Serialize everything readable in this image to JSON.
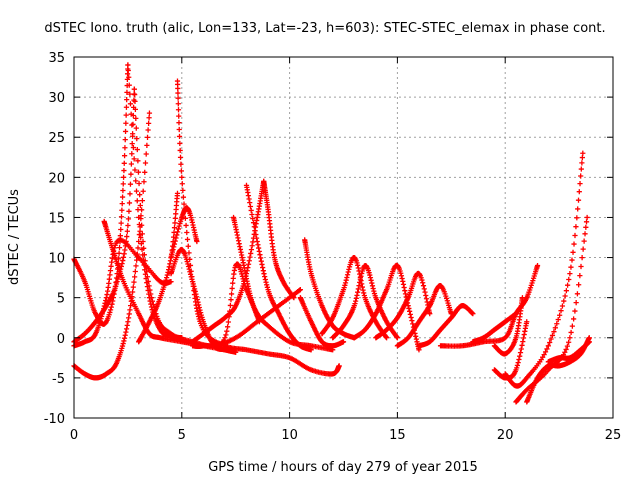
{
  "chart_data": {
    "type": "scatter",
    "title": "dSTEC Iono. truth (alic, Lon=133, Lat=-23, h=603): STEC-STEC_elemax in phase cont.",
    "xlabel": "GPS time / hours of day 279 of year 2015",
    "ylabel": "dSTEC  / TECUs",
    "xlim": [
      0,
      25
    ],
    "ylim": [
      -10,
      35
    ],
    "xticks": [
      0,
      5,
      10,
      15,
      20,
      25
    ],
    "yticks": [
      -10,
      -5,
      0,
      5,
      10,
      15,
      20,
      25,
      30,
      35
    ],
    "grid": true,
    "marker": "+",
    "color": "#ff0000",
    "series": [
      {
        "x": [
          0.0,
          0.5,
          1.0,
          1.5,
          2.0,
          2.3,
          2.5
        ],
        "y": [
          9.8,
          7.0,
          3.0,
          2.0,
          8.0,
          20.0,
          34.0
        ]
      },
      {
        "x": [
          2.5,
          3.0,
          3.5,
          4.0,
          4.5,
          5.0
        ],
        "y": [
          34.0,
          15.0,
          5.0,
          1.0,
          0.2,
          0.0
        ]
      },
      {
        "x": [
          0.0,
          0.5,
          1.0,
          1.5,
          2.0,
          2.5,
          2.8
        ],
        "y": [
          -0.5,
          0.5,
          2.0,
          4.0,
          7.0,
          14.0,
          31.0
        ]
      },
      {
        "x": [
          2.8,
          3.2,
          3.8,
          4.5,
          5.5,
          6.5,
          7.5,
          8.5,
          9.5,
          10.5
        ],
        "y": [
          31.0,
          12.0,
          3.0,
          0.5,
          -0.5,
          -1.0,
          0.0,
          2.0,
          4.0,
          6.0
        ]
      },
      {
        "x": [
          0.0,
          0.5,
          1.0,
          1.5,
          2.0,
          2.5,
          3.0,
          3.5
        ],
        "y": [
          -3.5,
          -4.5,
          -5.0,
          -4.5,
          -3.0,
          2.0,
          12.0,
          28.0
        ]
      },
      {
        "x": [
          0.0,
          0.5,
          1.0,
          1.5,
          2.0,
          3.0,
          4.0,
          4.5
        ],
        "y": [
          -1.0,
          -0.5,
          0.5,
          5.0,
          12.0,
          10.0,
          7.0,
          7.0
        ]
      },
      {
        "x": [
          1.4,
          1.8,
          2.3,
          3.0,
          3.5,
          4.0,
          5.0,
          6.0,
          7.0
        ],
        "y": [
          14.5,
          11.0,
          7.0,
          3.0,
          0.5,
          0.0,
          -0.5,
          -1.0,
          -1.5
        ]
      },
      {
        "x": [
          3.0,
          3.5,
          4.0,
          4.5,
          4.8
        ],
        "y": [
          -0.5,
          2.0,
          5.0,
          10.0,
          18.0
        ]
      },
      {
        "x": [
          4.8,
          5.0,
          5.5,
          6.0,
          7.0,
          8.0,
          9.0,
          10.0,
          11.0,
          12.0,
          12.3
        ],
        "y": [
          32.0,
          20.0,
          7.0,
          1.0,
          -1.0,
          -1.5,
          -2.0,
          -2.5,
          -4.0,
          -4.5,
          -3.5
        ]
      },
      {
        "x": [
          4.5,
          5.0,
          5.5,
          6.0,
          6.5,
          7.0,
          7.5
        ],
        "y": [
          8.0,
          11.0,
          7.0,
          2.0,
          -1.0,
          -1.5,
          -1.8
        ]
      },
      {
        "x": [
          4.5,
          5.0,
          5.3,
          5.7
        ],
        "y": [
          10.0,
          15.0,
          16.0,
          12.0
        ]
      },
      {
        "x": [
          5.5,
          6.0,
          7.0,
          7.5,
          8.0,
          8.5,
          9.0,
          10.0,
          11.0,
          12.0
        ],
        "y": [
          -1.0,
          -1.0,
          0.0,
          9.0,
          6.0,
          3.0,
          1.5,
          -0.5,
          -1.0,
          -1.5
        ]
      },
      {
        "x": [
          7.4,
          7.8,
          8.2,
          8.6
        ],
        "y": [
          15.0,
          10.0,
          5.0,
          2.0
        ]
      },
      {
        "x": [
          5.5,
          6.0,
          6.5,
          7.0,
          7.5,
          8.0,
          8.5,
          8.8
        ],
        "y": [
          -0.5,
          0.5,
          1.5,
          2.5,
          4.0,
          8.0,
          15.0,
          19.5
        ]
      },
      {
        "x": [
          8.0,
          8.5,
          9.0,
          9.5,
          10.0,
          10.5,
          11.0
        ],
        "y": [
          19.0,
          12.0,
          6.0,
          3.0,
          0.5,
          -1.0,
          -1.5
        ]
      },
      {
        "x": [
          8.8,
          9.0,
          9.3,
          9.7,
          10.2
        ],
        "y": [
          19.5,
          16.0,
          10.0,
          7.0,
          5.0
        ]
      },
      {
        "x": [
          10.5,
          11.0,
          11.5,
          12.0,
          12.5
        ],
        "y": [
          5.0,
          2.0,
          -0.5,
          -1.0,
          -0.5
        ]
      },
      {
        "x": [
          10.7,
          11.0,
          11.5,
          12.0,
          12.5,
          13.0
        ],
        "y": [
          12.2,
          8.0,
          4.0,
          1.5,
          0.5,
          0.0
        ]
      },
      {
        "x": [
          11.5,
          12.0,
          12.5,
          13.0,
          13.5,
          14.0,
          14.5
        ],
        "y": [
          0.5,
          2.5,
          6.0,
          10.0,
          5.0,
          2.0,
          0.0
        ]
      },
      {
        "x": [
          12.0,
          12.5,
          13.0,
          13.5,
          14.0,
          14.5,
          15.0
        ],
        "y": [
          0.0,
          1.5,
          4.0,
          9.0,
          5.0,
          2.0,
          0.0
        ]
      },
      {
        "x": [
          13.0,
          13.5,
          14.0,
          14.5,
          15.0,
          15.5,
          16.0
        ],
        "y": [
          0.0,
          1.0,
          3.0,
          6.0,
          9.0,
          4.0,
          -1.5
        ]
      },
      {
        "x": [
          14.0,
          14.5,
          15.0,
          15.5,
          16.0,
          16.5
        ],
        "y": [
          0.0,
          1.0,
          2.5,
          5.0,
          8.0,
          3.0
        ]
      },
      {
        "x": [
          15.0,
          15.5,
          16.0,
          16.5,
          17.0,
          17.5
        ],
        "y": [
          -1.0,
          0.0,
          2.0,
          4.0,
          6.5,
          3.0
        ]
      },
      {
        "x": [
          16.0,
          16.5,
          17.0,
          17.5,
          18.0,
          18.5
        ],
        "y": [
          -1.0,
          -0.5,
          1.0,
          2.5,
          4.0,
          3.0
        ]
      },
      {
        "x": [
          17.0,
          18.0,
          19.0,
          20.0,
          20.5,
          21.0,
          21.5
        ],
        "y": [
          -1.0,
          -1.0,
          -0.5,
          0.0,
          3.0,
          5.0,
          9.0
        ]
      },
      {
        "x": [
          18.5,
          19.0,
          19.5,
          20.0,
          20.5
        ],
        "y": [
          -0.5,
          0.0,
          1.0,
          2.0,
          3.0
        ]
      },
      {
        "x": [
          19.5,
          20.0,
          20.5,
          21.0
        ],
        "y": [
          -4.0,
          -5.0,
          -4.0,
          2.0
        ]
      },
      {
        "x": [
          19.5,
          20.0,
          20.5,
          20.8
        ],
        "y": [
          -1.0,
          -2.0,
          0.0,
          5.0
        ]
      },
      {
        "x": [
          20.0,
          20.5,
          21.0,
          22.0,
          23.0,
          23.6
        ],
        "y": [
          -4.5,
          -6.0,
          -5.0,
          -1.0,
          8.0,
          23.0
        ]
      },
      {
        "x": [
          20.5,
          21.0,
          22.0,
          23.0,
          23.8
        ],
        "y": [
          -8.0,
          -6.5,
          -4.0,
          0.0,
          15.0
        ]
      },
      {
        "x": [
          21.0,
          21.5,
          22.0,
          22.5,
          23.0,
          23.5,
          23.9
        ],
        "y": [
          -8.0,
          -5.0,
          -3.5,
          -3.5,
          -3.0,
          -2.0,
          0.0
        ]
      },
      {
        "x": [
          22.0,
          22.5,
          23.0,
          23.5,
          23.9
        ],
        "y": [
          -3.0,
          -2.5,
          -2.5,
          -1.5,
          -0.5
        ]
      }
    ]
  }
}
